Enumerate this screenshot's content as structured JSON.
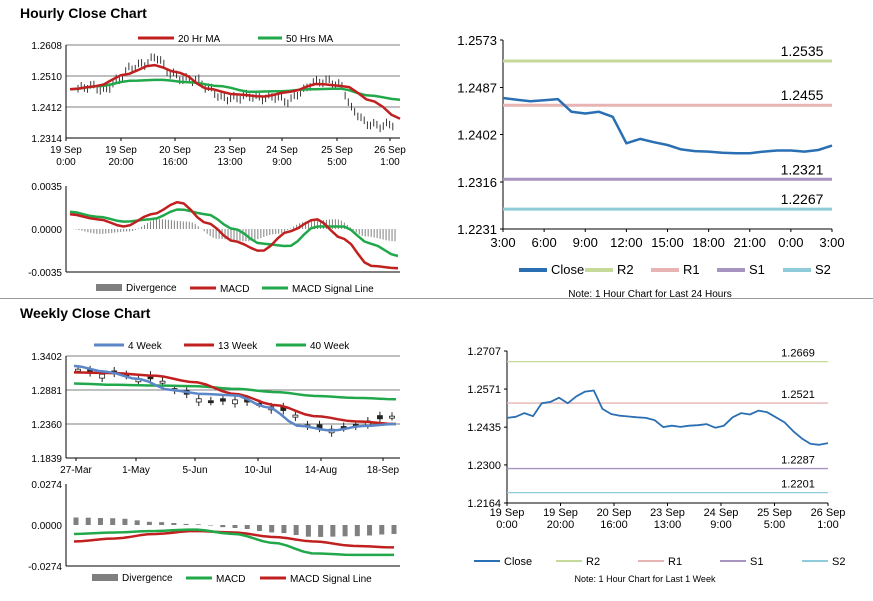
{
  "hourly": {
    "section_title": "Hourly Close Chart",
    "price_chart": {
      "legend": [
        "20 Hr MA",
        "50 Hrs MA"
      ],
      "yticks": [
        "1.2608",
        "1.2510",
        "1.2412",
        "1.2314"
      ],
      "xticks": [
        "19 Sep\n0:00",
        "19 Sep\n20:00",
        "20 Sep\n16:00",
        "23 Sep\n13:00",
        "24 Sep\n9:00",
        "25 Sep\n5:00",
        "26 Sep\n1:00"
      ]
    },
    "macd_chart": {
      "yticks": [
        "0.0035",
        "0.0000",
        "-0.0035"
      ],
      "legend": [
        "Divergence",
        "MACD",
        "MACD Signal Line"
      ]
    }
  },
  "weekly": {
    "section_title": "Weekly Close Chart",
    "price_chart": {
      "legend": [
        "4 Week",
        "13 Week",
        "40 Week"
      ],
      "yticks": [
        "1.3402",
        "1.2881",
        "1.2360",
        "1.1839"
      ],
      "xticks": [
        "27-Mar",
        "1-May",
        "5-Jun",
        "10-Jul",
        "14-Aug",
        "18-Sep"
      ]
    },
    "macd_chart": {
      "yticks": [
        "0.0274",
        "0.0000",
        "-0.0274"
      ],
      "legend": [
        "Divergence",
        "MACD",
        "MACD Signal Line"
      ]
    }
  },
  "chart_data": [
    {
      "type": "line",
      "id": "hourly-24h",
      "title": "",
      "ylim": [
        1.2231,
        1.2573
      ],
      "yticks": [
        "1.2573",
        "1.2487",
        "1.2402",
        "1.2316",
        "1.2231"
      ],
      "x": [
        "3:00",
        "4:00",
        "5:00",
        "6:00",
        "7:00",
        "8:00",
        "9:00",
        "10:00",
        "11:00",
        "12:00",
        "13:00",
        "14:00",
        "15:00",
        "16:00",
        "17:00",
        "18:00",
        "19:00",
        "20:00",
        "21:00",
        "22:00",
        "23:00",
        "0:00",
        "1:00",
        "2:00",
        "3:00"
      ],
      "xticks": [
        "3:00",
        "6:00",
        "9:00",
        "12:00",
        "15:00",
        "18:00",
        "21:00",
        "0:00",
        "3:00"
      ],
      "series": [
        {
          "name": "Close",
          "values": [
            1.2468,
            1.2465,
            1.2462,
            1.2464,
            1.2466,
            1.2443,
            1.244,
            1.2443,
            1.2434,
            1.2386,
            1.2394,
            1.2388,
            1.2383,
            1.2375,
            1.2372,
            1.2371,
            1.2369,
            1.2368,
            1.2368,
            1.2371,
            1.2373,
            1.2373,
            1.2371,
            1.2374,
            1.2382
          ]
        }
      ],
      "levels": [
        {
          "name": "R2",
          "value": 1.2535,
          "label": "1.2535"
        },
        {
          "name": "R1",
          "value": 1.2455,
          "label": "1.2455"
        },
        {
          "name": "S1",
          "value": 1.2321,
          "label": "1.2321"
        },
        {
          "name": "S2",
          "value": 1.2267,
          "label": "1.2267"
        }
      ],
      "legend": [
        "Close",
        "R2",
        "R1",
        "S1",
        "S2"
      ],
      "note": "Note: 1 Hour Chart for Last 24 Hours"
    },
    {
      "type": "line",
      "id": "hourly-1w",
      "title": "",
      "ylim": [
        1.2164,
        1.2707
      ],
      "yticks": [
        "1.2707",
        "1.2571",
        "1.2435",
        "1.2300",
        "1.2164"
      ],
      "xticks": [
        "19 Sep\n0:00",
        "19 Sep\n20:00",
        "20 Sep\n16:00",
        "23 Sep\n13:00",
        "24 Sep\n9:00",
        "25 Sep\n5:00",
        "26 Sep\n1:00"
      ],
      "series": [
        {
          "name": "Close",
          "values": [
            1.2468,
            1.2472,
            1.2485,
            1.2474,
            1.252,
            1.2525,
            1.254,
            1.252,
            1.2545,
            1.2562,
            1.2566,
            1.25,
            1.2482,
            1.2476,
            1.2473,
            1.247,
            1.2468,
            1.246,
            1.2435,
            1.244,
            1.2436,
            1.244,
            1.2442,
            1.2446,
            1.2433,
            1.244,
            1.247,
            1.2485,
            1.248,
            1.2494,
            1.2488,
            1.247,
            1.2452,
            1.242,
            1.2394,
            1.2375,
            1.2372,
            1.2378
          ]
        }
      ],
      "levels": [
        {
          "name": "R2",
          "value": 1.2669,
          "label": "1.2669"
        },
        {
          "name": "R1",
          "value": 1.2521,
          "label": "1.2521"
        },
        {
          "name": "S1",
          "value": 1.2287,
          "label": "1.2287"
        },
        {
          "name": "S2",
          "value": 1.2201,
          "label": "1.2201"
        }
      ],
      "legend": [
        "Close",
        "R2",
        "R1",
        "S1",
        "S2"
      ],
      "note": "Note: 1 Hour Chart for Last 1 Week"
    }
  ],
  "colors": {
    "close": "#2a6fb3",
    "r2": "#c5d99a",
    "r1": "#e8b3b3",
    "s1": "#a794c1",
    "s2": "#8fcbd8",
    "ma_red": "#c0201f",
    "ma_green": "#21a84a",
    "ma_blue": "#5b86c7",
    "divergence": "#7f7f7f"
  }
}
